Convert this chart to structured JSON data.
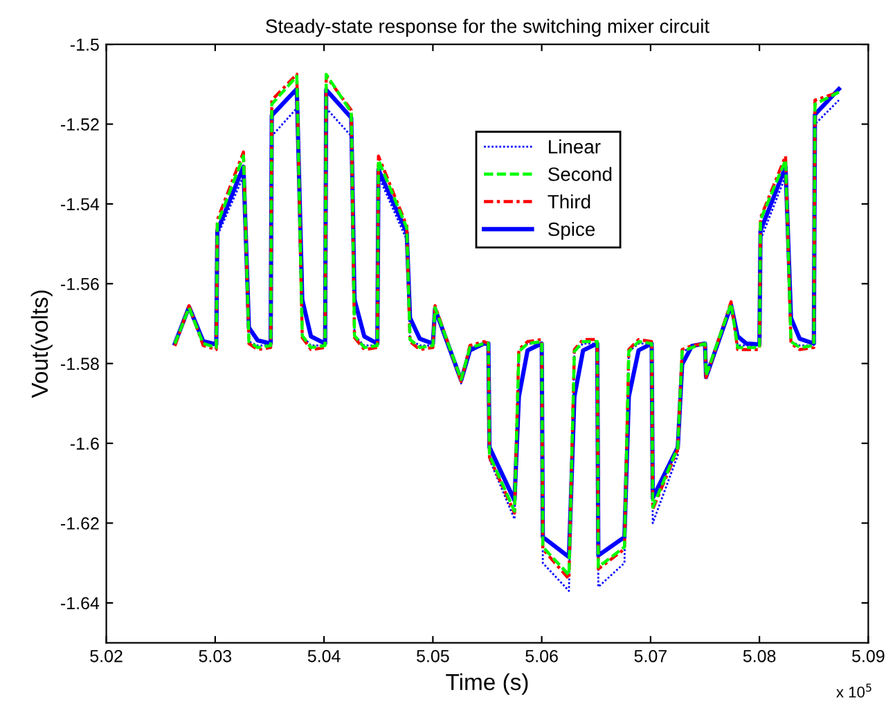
{
  "chart_data": {
    "type": "line",
    "title": "Steady-state response for the switching mixer circuit",
    "xlabel": "Time (s)",
    "ylabel": "Vout(volts)",
    "annotations": [
      "x 10$^{5}$"
    ],
    "xlim": [
      5.02,
      5.09
    ],
    "xticks": [
      5.02,
      5.03,
      5.04,
      5.05,
      5.06,
      5.07,
      5.08,
      5.09
    ],
    "ylim": [
      -1.65,
      -1.5
    ],
    "yticks": [
      -1.64,
      -1.62,
      -1.6,
      -1.58,
      -1.56,
      -1.54,
      -1.52,
      -1.5
    ],
    "grid": false,
    "legend": "top",
    "marker": "none",
    "x": [
      5.0263,
      5.0276,
      5.0289,
      5.0301,
      5.0302,
      5.0326,
      5.0331,
      5.0339,
      5.0351,
      5.0352,
      5.0375,
      5.038,
      5.0388,
      5.0401,
      5.0402,
      5.0425,
      5.0428,
      5.0437,
      5.0449,
      5.045,
      5.0476,
      5.0479,
      5.0488,
      5.05,
      5.0502,
      5.0526,
      5.0534,
      5.0547,
      5.0551,
      5.0552,
      5.0575,
      5.0579,
      5.0587,
      5.06,
      5.0601,
      5.0625,
      5.063,
      5.0638,
      5.0651,
      5.0652,
      5.0676,
      5.068,
      5.0689,
      5.0701,
      5.0702,
      5.0725,
      5.0729,
      5.0738,
      5.075,
      5.0751,
      5.0774,
      5.078,
      5.0788,
      5.08,
      5.0801,
      5.0824,
      5.0829,
      5.0837,
      5.085,
      5.0851,
      5.0873
    ],
    "series": [
      {
        "name": "Linear",
        "color": "#0000ff",
        "line_style": "dotted",
        "values": [
          -1.5745,
          -1.5665,
          -1.575,
          -1.5755,
          -1.548,
          -1.533,
          -1.5745,
          -1.5755,
          -1.5755,
          -1.523,
          -1.516,
          -1.573,
          -1.5755,
          -1.5755,
          -1.516,
          -1.523,
          -1.573,
          -1.5755,
          -1.5755,
          -1.533,
          -1.549,
          -1.574,
          -1.5755,
          -1.5755,
          -1.567,
          -1.585,
          -1.576,
          -1.575,
          -1.575,
          -1.604,
          -1.619,
          -1.577,
          -1.575,
          -1.575,
          -1.63,
          -1.637,
          -1.577,
          -1.575,
          -1.575,
          -1.636,
          -1.63,
          -1.577,
          -1.575,
          -1.575,
          -1.62,
          -1.603,
          -1.577,
          -1.576,
          -1.575,
          -1.584,
          -1.566,
          -1.5755,
          -1.5755,
          -1.5755,
          -1.549,
          -1.533,
          -1.5745,
          -1.5755,
          -1.5755,
          -1.52,
          -1.514
        ]
      },
      {
        "name": "Second",
        "color": "#00ff00",
        "line_style": "dashed",
        "values": [
          -1.575,
          -1.566,
          -1.575,
          -1.576,
          -1.545,
          -1.528,
          -1.5745,
          -1.576,
          -1.5755,
          -1.515,
          -1.508,
          -1.573,
          -1.576,
          -1.5755,
          -1.5075,
          -1.517,
          -1.573,
          -1.576,
          -1.5755,
          -1.529,
          -1.546,
          -1.574,
          -1.576,
          -1.5755,
          -1.566,
          -1.584,
          -1.576,
          -1.575,
          -1.575,
          -1.603,
          -1.617,
          -1.577,
          -1.575,
          -1.5745,
          -1.626,
          -1.633,
          -1.577,
          -1.5745,
          -1.5745,
          -1.631,
          -1.626,
          -1.577,
          -1.5745,
          -1.575,
          -1.616,
          -1.601,
          -1.577,
          -1.576,
          -1.575,
          -1.583,
          -1.565,
          -1.576,
          -1.576,
          -1.576,
          -1.544,
          -1.529,
          -1.5745,
          -1.576,
          -1.5755,
          -1.515,
          -1.512
        ]
      },
      {
        "name": "Third",
        "color": "#ff0000",
        "line_style": "dashdot",
        "values": [
          -1.5756,
          -1.5655,
          -1.5755,
          -1.5765,
          -1.544,
          -1.527,
          -1.575,
          -1.5765,
          -1.576,
          -1.514,
          -1.5075,
          -1.5735,
          -1.5765,
          -1.576,
          -1.508,
          -1.5165,
          -1.5735,
          -1.5765,
          -1.576,
          -1.528,
          -1.5455,
          -1.5745,
          -1.5765,
          -1.576,
          -1.5655,
          -1.5845,
          -1.5755,
          -1.5745,
          -1.575,
          -1.6035,
          -1.6175,
          -1.5765,
          -1.5745,
          -1.574,
          -1.6265,
          -1.634,
          -1.5765,
          -1.574,
          -1.574,
          -1.6315,
          -1.6265,
          -1.5765,
          -1.574,
          -1.5745,
          -1.6165,
          -1.6015,
          -1.5765,
          -1.5755,
          -1.575,
          -1.5835,
          -1.5645,
          -1.5765,
          -1.5765,
          -1.5765,
          -1.5435,
          -1.528,
          -1.575,
          -1.5765,
          -1.576,
          -1.514,
          -1.512
        ]
      },
      {
        "name": "Spice",
        "color": "#0000ff",
        "line_style": "solid",
        "values": [
          -1.575,
          -1.5658,
          -1.5744,
          -1.5752,
          -1.5467,
          -1.5307,
          -1.571,
          -1.5742,
          -1.575,
          -1.5178,
          -1.5112,
          -1.564,
          -1.5732,
          -1.575,
          -1.5114,
          -1.5184,
          -1.564,
          -1.5732,
          -1.575,
          -1.5314,
          -1.5472,
          -1.5686,
          -1.5738,
          -1.575,
          -1.5663,
          -1.5842,
          -1.5767,
          -1.575,
          -1.575,
          -1.601,
          -1.6143,
          -1.5883,
          -1.5767,
          -1.575,
          -1.6235,
          -1.6285,
          -1.5883,
          -1.5767,
          -1.575,
          -1.6281,
          -1.6235,
          -1.5883,
          -1.5767,
          -1.575,
          -1.6137,
          -1.601,
          -1.5802,
          -1.5756,
          -1.575,
          -1.5834,
          -1.5654,
          -1.5732,
          -1.575,
          -1.5752,
          -1.5467,
          -1.5307,
          -1.5686,
          -1.5738,
          -1.575,
          -1.5176,
          -1.5112
        ]
      }
    ]
  }
}
